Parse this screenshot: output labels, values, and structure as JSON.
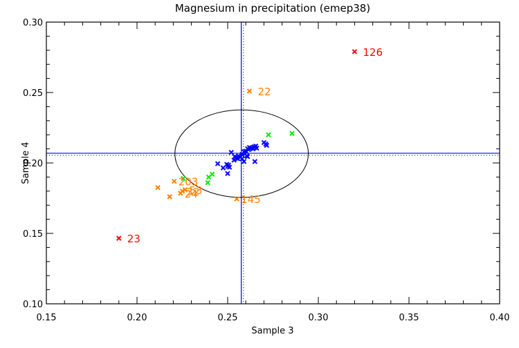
{
  "chart_data": {
    "type": "scatter",
    "title": "Magnesium in precipitation (emep38)",
    "xlabel": "Sample 3",
    "ylabel": "Sample 4",
    "xlim": [
      0.15,
      0.4
    ],
    "ylim": [
      0.1,
      0.3
    ],
    "x_ticks": [
      "0.15",
      "0.20",
      "0.25",
      "0.30",
      "0.35",
      "0.40"
    ],
    "x_tick_values": [
      0.15,
      0.2,
      0.25,
      0.3,
      0.35,
      0.4
    ],
    "y_ticks": [
      "0.10",
      "0.15",
      "0.20",
      "0.25",
      "0.30"
    ],
    "y_tick_values": [
      0.1,
      0.15,
      0.2,
      0.25,
      0.3
    ],
    "x_minor_step": 0.01,
    "y_minor_step": 0.01,
    "grid": false,
    "reference_lines": {
      "median_x": 0.2575,
      "median_y": 0.2069,
      "mean_x": 0.2587,
      "mean_y": 0.2054,
      "color": "#0000ff"
    },
    "ellipse": {
      "center": [
        0.2577,
        0.2066
      ],
      "radius_x": 0.0368,
      "radius_y": 0.0311,
      "color": "#000000"
    },
    "colors": {
      "blue": "#0000ff",
      "green": "#00ee00",
      "orange": "#ff7f00",
      "red": "#ff0000"
    },
    "series": [
      {
        "name": "blue",
        "color": "#0000ff",
        "points": [
          [
            0.2445,
            0.1995
          ],
          [
            0.2475,
            0.1965
          ],
          [
            0.2495,
            0.199
          ],
          [
            0.25,
            0.1975
          ],
          [
            0.2505,
            0.1985
          ],
          [
            0.251,
            0.197
          ],
          [
            0.25,
            0.1925
          ],
          [
            0.252,
            0.2075
          ],
          [
            0.2535,
            0.202
          ],
          [
            0.2545,
            0.2035
          ],
          [
            0.2555,
            0.203
          ],
          [
            0.254,
            0.2045
          ],
          [
            0.256,
            0.205
          ],
          [
            0.257,
            0.204
          ],
          [
            0.258,
            0.206
          ],
          [
            0.259,
            0.208
          ],
          [
            0.2595,
            0.2065
          ],
          [
            0.26,
            0.2085
          ],
          [
            0.2605,
            0.205
          ],
          [
            0.261,
            0.21
          ],
          [
            0.259,
            0.201
          ],
          [
            0.2615,
            0.2095
          ],
          [
            0.262,
            0.211
          ],
          [
            0.263,
            0.2105
          ],
          [
            0.264,
            0.21
          ],
          [
            0.2645,
            0.2115
          ],
          [
            0.265,
            0.211
          ],
          [
            0.2655,
            0.212
          ],
          [
            0.266,
            0.2105
          ],
          [
            0.261,
            0.2045
          ],
          [
            0.265,
            0.201
          ],
          [
            0.27,
            0.2145
          ],
          [
            0.271,
            0.2135
          ],
          [
            0.2715,
            0.2125
          ],
          [
            0.258,
            0.203
          ]
        ]
      },
      {
        "name": "green",
        "color": "#00ee00",
        "points": [
          [
            0.2255,
            0.189
          ],
          [
            0.239,
            0.186
          ],
          [
            0.2395,
            0.19
          ],
          [
            0.2415,
            0.192
          ],
          [
            0.2725,
            0.22
          ],
          [
            0.2855,
            0.221
          ]
        ]
      },
      {
        "name": "orange",
        "color": "#ff7f00",
        "points": [
          {
            "x": 0.262,
            "y": 0.251,
            "label": "22"
          },
          {
            "x": 0.2205,
            "y": 0.187,
            "label": "203"
          },
          {
            "x": 0.2115,
            "y": 0.1825,
            "label": ""
          },
          {
            "x": 0.225,
            "y": 0.18,
            "label": "32"
          },
          {
            "x": 0.218,
            "y": 0.176,
            "label": ""
          },
          {
            "x": 0.224,
            "y": 0.1785,
            "label": "24"
          },
          {
            "x": 0.2265,
            "y": 0.181,
            "label": "53"
          },
          {
            "x": 0.255,
            "y": 0.1745,
            "label": "145"
          }
        ]
      },
      {
        "name": "red",
        "color": "#ff0000",
        "points": [
          {
            "x": 0.32,
            "y": 0.279,
            "label": "126"
          },
          {
            "x": 0.19,
            "y": 0.1465,
            "label": "23"
          }
        ]
      }
    ],
    "labels": [
      {
        "text": "22",
        "color": "#ff7f00"
      },
      {
        "text": "203",
        "color": "#ff7f00"
      },
      {
        "text": "32",
        "color": "#ff7f00"
      },
      {
        "text": "24",
        "color": "#ff7f00"
      },
      {
        "text": "53",
        "color": "#ff7f00"
      },
      {
        "text": "145",
        "color": "#ff7f00"
      },
      {
        "text": "126",
        "color": "#ff0000"
      },
      {
        "text": "23",
        "color": "#ff0000"
      }
    ]
  }
}
